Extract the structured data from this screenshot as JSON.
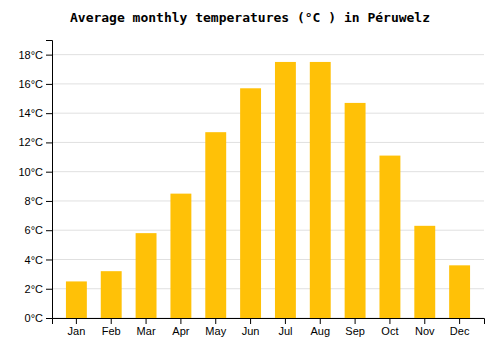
{
  "chart_data": {
    "type": "bar",
    "title": "Average monthly temperatures (°C ) in Péruwelz",
    "categories": [
      "Jan",
      "Feb",
      "Mar",
      "Apr",
      "May",
      "Jun",
      "Jul",
      "Aug",
      "Sep",
      "Oct",
      "Nov",
      "Dec"
    ],
    "values": [
      2.5,
      3.2,
      5.8,
      8.5,
      12.7,
      15.7,
      17.5,
      17.5,
      14.7,
      11.1,
      6.3,
      3.6
    ],
    "color": "#FFC107",
    "ylim": [
      0,
      19
    ],
    "yticks": [
      {
        "value": 0,
        "label": "0°C"
      },
      {
        "value": 2,
        "label": "2°C"
      },
      {
        "value": 4,
        "label": "4°C"
      },
      {
        "value": 6,
        "label": "6°C"
      },
      {
        "value": 8,
        "label": "8°C"
      },
      {
        "value": 10,
        "label": "10°C"
      },
      {
        "value": 12,
        "label": "12°C"
      },
      {
        "value": 14,
        "label": "14°C"
      },
      {
        "value": 16,
        "label": "16°C"
      },
      {
        "value": 18,
        "label": "18°C"
      }
    ],
    "grid": true
  }
}
